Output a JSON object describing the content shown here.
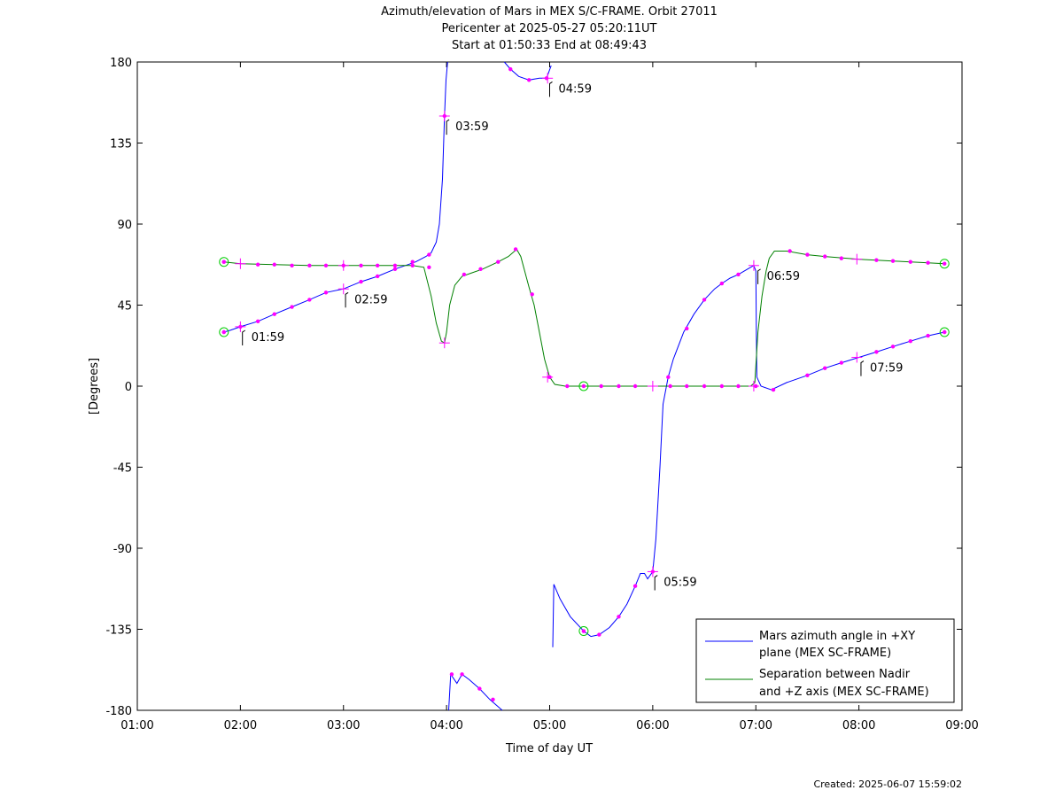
{
  "chart_data": {
    "type": "line",
    "title_lines": [
      "Azimuth/elevation of Mars in MEX S/C-FRAME.  Orbit 27011",
      "Pericenter at 2025-05-27 05:20:11UT",
      "Start at 01:50:33 End at 08:49:43"
    ],
    "xlabel": "Time of day UT",
    "ylabel": "[Degrees]",
    "xlim": [
      1.0,
      9.0
    ],
    "ylim": [
      -180,
      180
    ],
    "xticks": [
      {
        "v": 1,
        "label": "01:00"
      },
      {
        "v": 2,
        "label": "02:00"
      },
      {
        "v": 3,
        "label": "03:00"
      },
      {
        "v": 4,
        "label": "04:00"
      },
      {
        "v": 5,
        "label": "05:00"
      },
      {
        "v": 6,
        "label": "06:00"
      },
      {
        "v": 7,
        "label": "07:00"
      },
      {
        "v": 8,
        "label": "08:00"
      },
      {
        "v": 9,
        "label": "09:00"
      }
    ],
    "yticks": [
      {
        "v": 180,
        "label": "180"
      },
      {
        "v": 135,
        "label": "135"
      },
      {
        "v": 90,
        "label": "90"
      },
      {
        "v": 45,
        "label": "45"
      },
      {
        "v": 0,
        "label": "0"
      },
      {
        "v": -45,
        "label": "-45"
      },
      {
        "v": -90,
        "label": "-90"
      },
      {
        "v": -135,
        "label": "-135"
      },
      {
        "v": -180,
        "label": "-180"
      }
    ],
    "grid": false,
    "legend_position": "bottom-right",
    "series": [
      {
        "name": "Mars azimuth angle in +XY plane (MEX SC-FRAME)",
        "legend_lines": [
          "Mars azimuth angle in +XY",
          "plane (MEX SC-FRAME)"
        ],
        "color": "#0000ff",
        "segments": [
          [
            [
              1.84,
              30
            ],
            [
              1.9,
              31
            ],
            [
              2.0,
              33
            ],
            [
              2.17,
              36
            ],
            [
              2.33,
              40
            ],
            [
              2.5,
              44
            ],
            [
              2.67,
              48
            ],
            [
              2.83,
              52
            ],
            [
              3.0,
              54
            ],
            [
              3.17,
              58
            ],
            [
              3.33,
              61
            ],
            [
              3.5,
              65
            ],
            [
              3.6,
              67
            ],
            [
              3.7,
              69
            ],
            [
              3.8,
              72
            ],
            [
              3.85,
              74
            ],
            [
              3.9,
              80
            ],
            [
              3.93,
              90
            ],
            [
              3.96,
              115
            ],
            [
              3.98,
              150
            ],
            [
              3.995,
              170
            ],
            [
              4.01,
              180
            ]
          ],
          [
            [
              4.02,
              -180
            ],
            [
              4.04,
              -160
            ],
            [
              4.1,
              -165
            ],
            [
              4.15,
              -160
            ],
            [
              4.22,
              -163
            ],
            [
              4.32,
              -168
            ],
            [
              4.42,
              -174
            ],
            [
              4.54,
              -180
            ]
          ],
          [
            [
              4.56,
              180
            ],
            [
              4.62,
              176
            ],
            [
              4.7,
              172
            ],
            [
              4.8,
              170
            ],
            [
              4.9,
              171
            ],
            [
              4.97,
              171
            ],
            [
              5.015,
              178
            ]
          ],
          [
            [
              5.03,
              -145
            ],
            [
              5.04,
              -110
            ],
            [
              5.1,
              -118
            ],
            [
              5.2,
              -128
            ],
            [
              5.33,
              -136
            ],
            [
              5.4,
              -139
            ],
            [
              5.48,
              -138
            ],
            [
              5.58,
              -134
            ],
            [
              5.67,
              -128
            ],
            [
              5.75,
              -121
            ],
            [
              5.83,
              -111
            ],
            [
              5.88,
              -104
            ],
            [
              5.92,
              -104
            ],
            [
              5.95,
              -107
            ],
            [
              6.0,
              -103
            ],
            [
              6.03,
              -85
            ],
            [
              6.07,
              -45
            ],
            [
              6.1,
              -10
            ],
            [
              6.15,
              5
            ],
            [
              6.2,
              15
            ],
            [
              6.3,
              30
            ],
            [
              6.4,
              40
            ],
            [
              6.5,
              48
            ],
            [
              6.6,
              54
            ],
            [
              6.67,
              57
            ],
            [
              6.75,
              60
            ],
            [
              6.83,
              62
            ],
            [
              6.92,
              65
            ],
            [
              6.98,
              67
            ],
            [
              7.0,
              64
            ]
          ],
          [
            [
              7.0,
              64
            ],
            [
              7.005,
              30
            ],
            [
              7.01,
              5
            ],
            [
              7.05,
              0
            ],
            [
              7.15,
              -2
            ],
            [
              7.3,
              2
            ],
            [
              7.5,
              6
            ],
            [
              7.67,
              10
            ],
            [
              7.83,
              13
            ],
            [
              8.0,
              16
            ],
            [
              8.17,
              19
            ],
            [
              8.33,
              22
            ],
            [
              8.5,
              25
            ],
            [
              8.67,
              28
            ],
            [
              8.83,
              30
            ]
          ]
        ]
      },
      {
        "name": "Separation between Nadir and +Z axis (MEX SC-FRAME)",
        "legend_lines": [
          "Separation between Nadir",
          "and +Z axis (MEX SC-FRAME)"
        ],
        "color": "#008000",
        "segments": [
          [
            [
              1.84,
              69
            ],
            [
              2.0,
              68
            ],
            [
              2.33,
              67.5
            ],
            [
              2.67,
              67
            ],
            [
              3.0,
              67
            ],
            [
              3.33,
              67
            ],
            [
              3.67,
              67
            ],
            [
              3.78,
              66
            ],
            [
              3.85,
              50
            ],
            [
              3.9,
              35
            ],
            [
              3.95,
              25
            ],
            [
              3.98,
              24
            ],
            [
              4.0,
              30
            ],
            [
              4.03,
              45
            ],
            [
              4.08,
              56
            ],
            [
              4.15,
              61
            ],
            [
              4.25,
              63
            ],
            [
              4.35,
              65
            ],
            [
              4.5,
              69
            ],
            [
              4.6,
              72
            ],
            [
              4.68,
              76
            ],
            [
              4.72,
              72
            ],
            [
              4.8,
              55
            ],
            [
              4.85,
              45
            ],
            [
              4.9,
              30
            ],
            [
              4.95,
              15
            ],
            [
              5.0,
              5
            ],
            [
              5.05,
              1
            ],
            [
              5.15,
              0
            ],
            [
              5.33,
              0
            ],
            [
              5.5,
              0
            ],
            [
              5.67,
              0
            ],
            [
              6.0,
              0
            ],
            [
              6.33,
              0
            ],
            [
              6.67,
              0
            ],
            [
              6.95,
              0
            ],
            [
              6.99,
              2
            ],
            [
              7.02,
              30
            ],
            [
              7.06,
              50
            ],
            [
              7.1,
              64
            ],
            [
              7.13,
              71
            ],
            [
              7.18,
              75
            ],
            [
              7.3,
              75
            ],
            [
              7.5,
              73
            ],
            [
              7.67,
              72
            ],
            [
              8.0,
              70.5
            ],
            [
              8.33,
              69.5
            ],
            [
              8.67,
              68.5
            ],
            [
              8.83,
              68
            ]
          ]
        ]
      }
    ],
    "dot_color": "#ff00ff",
    "dots": [
      [
        1.84,
        30
      ],
      [
        2.0,
        33
      ],
      [
        2.17,
        36
      ],
      [
        2.33,
        40
      ],
      [
        2.5,
        44
      ],
      [
        2.67,
        48
      ],
      [
        2.83,
        52
      ],
      [
        3.17,
        58
      ],
      [
        3.33,
        61
      ],
      [
        3.5,
        65
      ],
      [
        3.67,
        69
      ],
      [
        3.83,
        73
      ],
      [
        3.98,
        150
      ],
      [
        4.05,
        -160
      ],
      [
        4.15,
        -160
      ],
      [
        4.32,
        -168
      ],
      [
        4.45,
        -174
      ],
      [
        4.62,
        176
      ],
      [
        4.8,
        170
      ],
      [
        4.97,
        171
      ],
      [
        5.33,
        -136
      ],
      [
        5.48,
        -138
      ],
      [
        5.67,
        -128
      ],
      [
        5.83,
        -111
      ],
      [
        6.0,
        -103
      ],
      [
        6.15,
        5
      ],
      [
        6.33,
        32
      ],
      [
        6.5,
        48
      ],
      [
        6.67,
        57
      ],
      [
        6.83,
        62
      ],
      [
        7.17,
        -2
      ],
      [
        7.5,
        6
      ],
      [
        7.67,
        10
      ],
      [
        7.83,
        13
      ],
      [
        8.17,
        19
      ],
      [
        8.33,
        22
      ],
      [
        8.5,
        25
      ],
      [
        8.67,
        28
      ],
      [
        8.83,
        30
      ],
      [
        1.84,
        69
      ],
      [
        2.17,
        67.5
      ],
      [
        2.33,
        67.5
      ],
      [
        2.5,
        67
      ],
      [
        2.67,
        67
      ],
      [
        2.83,
        67
      ],
      [
        3.0,
        67
      ],
      [
        3.17,
        67
      ],
      [
        3.33,
        67
      ],
      [
        3.5,
        67
      ],
      [
        3.67,
        67
      ],
      [
        3.83,
        66
      ],
      [
        4.17,
        62
      ],
      [
        4.33,
        65
      ],
      [
        4.5,
        69
      ],
      [
        4.67,
        76
      ],
      [
        4.83,
        51
      ],
      [
        5.0,
        5
      ],
      [
        5.17,
        0
      ],
      [
        5.5,
        0
      ],
      [
        5.67,
        0
      ],
      [
        5.83,
        0
      ],
      [
        6.17,
        0
      ],
      [
        6.33,
        0
      ],
      [
        6.5,
        0
      ],
      [
        6.67,
        0
      ],
      [
        6.83,
        0
      ],
      [
        7.0,
        0
      ],
      [
        7.33,
        75
      ],
      [
        7.5,
        73
      ],
      [
        7.67,
        72
      ],
      [
        7.83,
        71
      ],
      [
        8.17,
        70
      ],
      [
        8.33,
        69.5
      ],
      [
        8.5,
        69
      ],
      [
        8.67,
        68.5
      ]
    ],
    "crosses": [
      [
        2.0,
        33
      ],
      [
        2.0,
        68
      ],
      [
        3.0,
        54
      ],
      [
        3.0,
        67
      ],
      [
        3.98,
        150
      ],
      [
        3.98,
        24
      ],
      [
        4.98,
        171
      ],
      [
        4.98,
        5
      ],
      [
        6.0,
        -103
      ],
      [
        6.0,
        0
      ],
      [
        6.98,
        67
      ],
      [
        6.98,
        0
      ],
      [
        7.98,
        16
      ],
      [
        7.98,
        70.5
      ]
    ],
    "circles": [
      [
        1.84,
        30
      ],
      [
        1.84,
        69
      ],
      [
        5.33,
        -136
      ],
      [
        5.33,
        0
      ],
      [
        8.83,
        30
      ],
      [
        8.83,
        68
      ]
    ],
    "annotations": [
      {
        "x": 2.02,
        "y": 30,
        "label": "01:59"
      },
      {
        "x": 3.02,
        "y": 51,
        "label": "02:59"
      },
      {
        "x": 4.0,
        "y": 147,
        "label": "03:59"
      },
      {
        "x": 5.0,
        "y": 168,
        "label": "04:59"
      },
      {
        "x": 6.02,
        "y": -106,
        "label": "05:59"
      },
      {
        "x": 7.02,
        "y": 64,
        "label": "06:59"
      },
      {
        "x": 8.02,
        "y": 13,
        "label": "07:59"
      }
    ]
  },
  "footer": {
    "created": "Created: 2025-06-07 15:59:02"
  }
}
